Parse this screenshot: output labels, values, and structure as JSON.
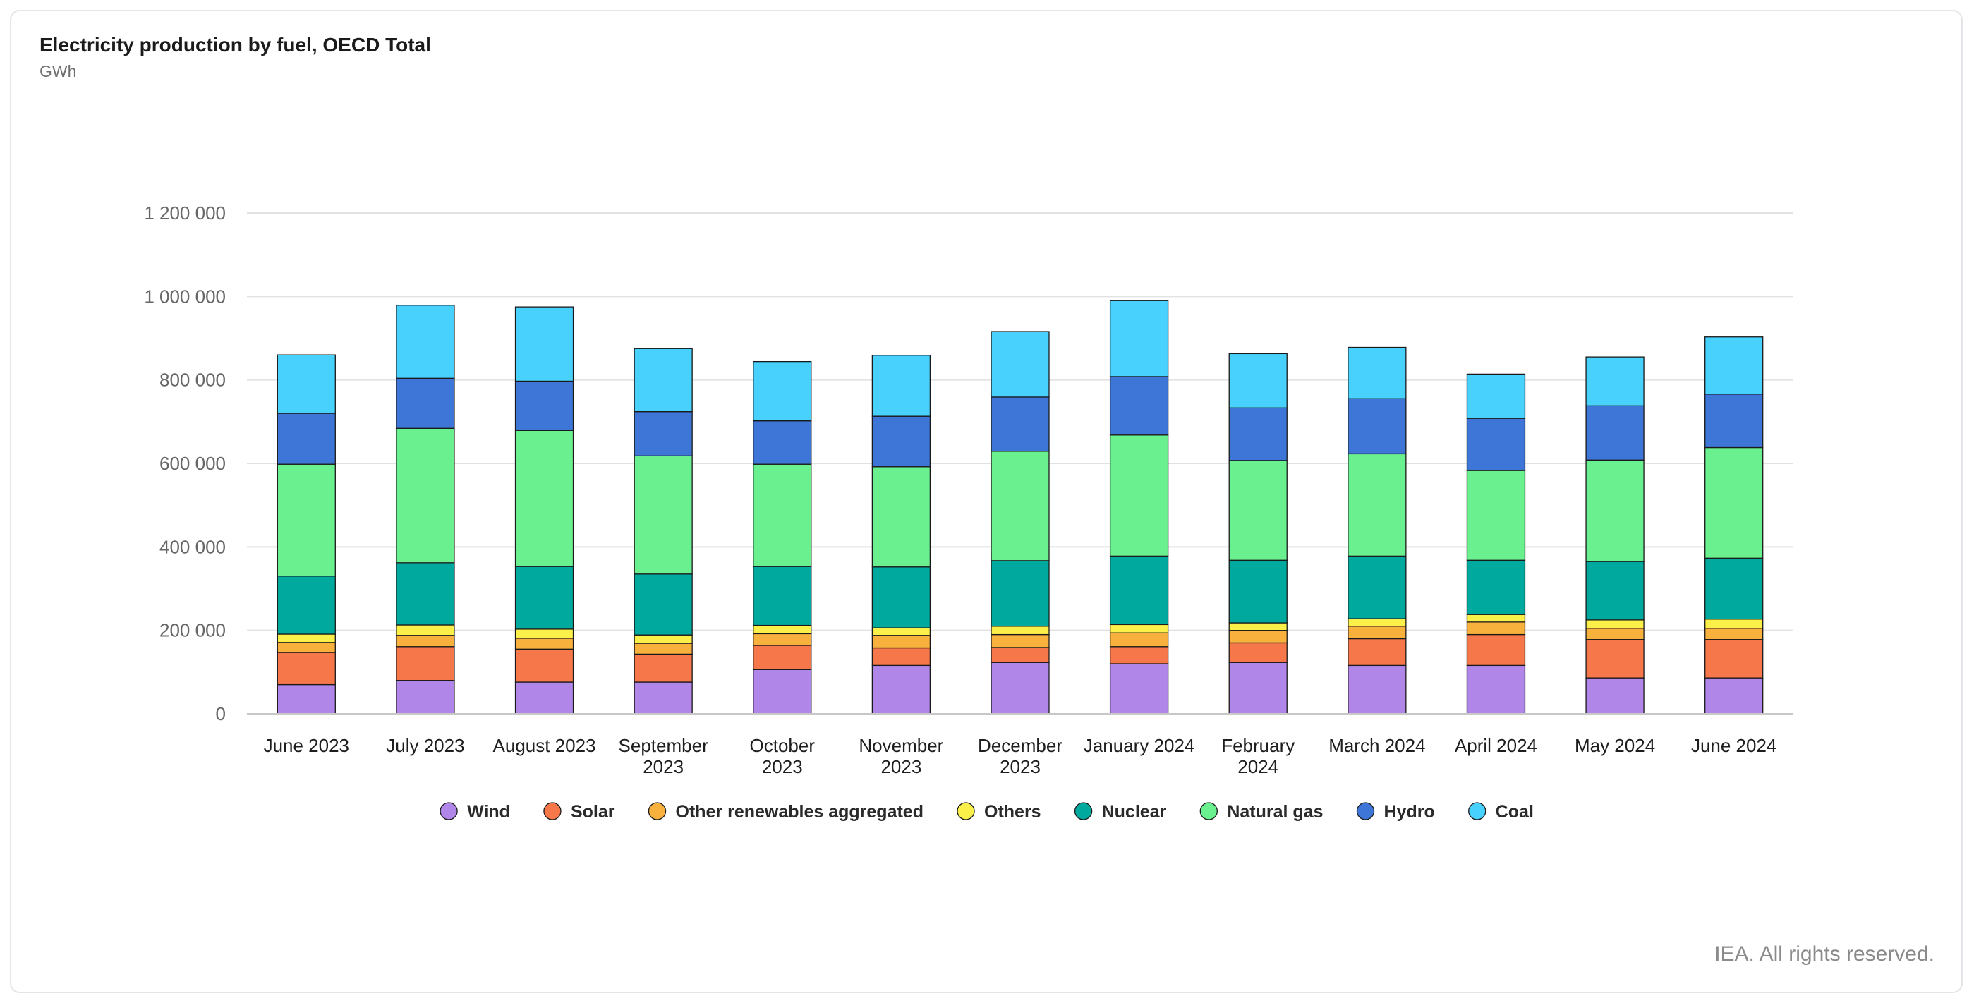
{
  "footer": {
    "credit": "IEA. All rights reserved."
  },
  "chart_data": {
    "type": "bar",
    "stacked": true,
    "title": "Electricity production by fuel, OECD Total",
    "subtitle": "GWh",
    "xlabel": "",
    "ylabel": "GWh",
    "ylim": [
      0,
      1200000
    ],
    "yticks": [
      0,
      200000,
      400000,
      600000,
      800000,
      1000000,
      1200000
    ],
    "ytick_labels": [
      "0",
      "200 000",
      "400 000",
      "600 000",
      "800 000",
      "1 000 000",
      "1 200 000"
    ],
    "grid": true,
    "legend_position": "bottom-center",
    "categories": [
      [
        "June 2023"
      ],
      [
        "July 2023"
      ],
      [
        "August 2023"
      ],
      [
        "September",
        "2023"
      ],
      [
        "October",
        "2023"
      ],
      [
        "November",
        "2023"
      ],
      [
        "December",
        "2023"
      ],
      [
        "January 2024"
      ],
      [
        "February",
        "2024"
      ],
      [
        "March 2024"
      ],
      [
        "April 2024"
      ],
      [
        "May 2024"
      ],
      [
        "June 2024"
      ]
    ],
    "series": [
      {
        "name": "Wind",
        "color": "#b086e8",
        "values": [
          70000,
          80000,
          76000,
          76000,
          106000,
          116000,
          123000,
          120000,
          123000,
          116000,
          116000,
          86000,
          86000
        ]
      },
      {
        "name": "Solar",
        "color": "#f6784a",
        "values": [
          77000,
          81000,
          79000,
          67000,
          58000,
          42000,
          36000,
          41000,
          47000,
          64000,
          74000,
          92000,
          92000
        ]
      },
      {
        "name": "Other renewables aggregated",
        "color": "#f9b13e",
        "values": [
          24000,
          27000,
          26000,
          26000,
          28000,
          30000,
          31000,
          33000,
          30000,
          30000,
          30000,
          27000,
          27000
        ]
      },
      {
        "name": "Others",
        "color": "#fbf049",
        "values": [
          20000,
          25000,
          22000,
          20000,
          20000,
          18000,
          20000,
          20000,
          18000,
          18000,
          18000,
          20000,
          22000
        ]
      },
      {
        "name": "Nuclear",
        "color": "#00a99d",
        "values": [
          139000,
          149000,
          150000,
          146000,
          141000,
          146000,
          157000,
          164000,
          150000,
          150000,
          130000,
          140000,
          146000
        ]
      },
      {
        "name": "Natural gas",
        "color": "#6bf08f",
        "values": [
          268000,
          322000,
          326000,
          283000,
          245000,
          240000,
          262000,
          290000,
          239000,
          245000,
          215000,
          243000,
          265000
        ]
      },
      {
        "name": "Hydro",
        "color": "#3d76d6",
        "values": [
          122000,
          120000,
          118000,
          106000,
          104000,
          121000,
          130000,
          140000,
          126000,
          132000,
          125000,
          130000,
          128000
        ]
      },
      {
        "name": "Coal",
        "color": "#48d1fc",
        "values": [
          140000,
          175000,
          178000,
          151000,
          142000,
          146000,
          157000,
          182000,
          130000,
          123000,
          106000,
          117000,
          137000
        ]
      }
    ]
  }
}
